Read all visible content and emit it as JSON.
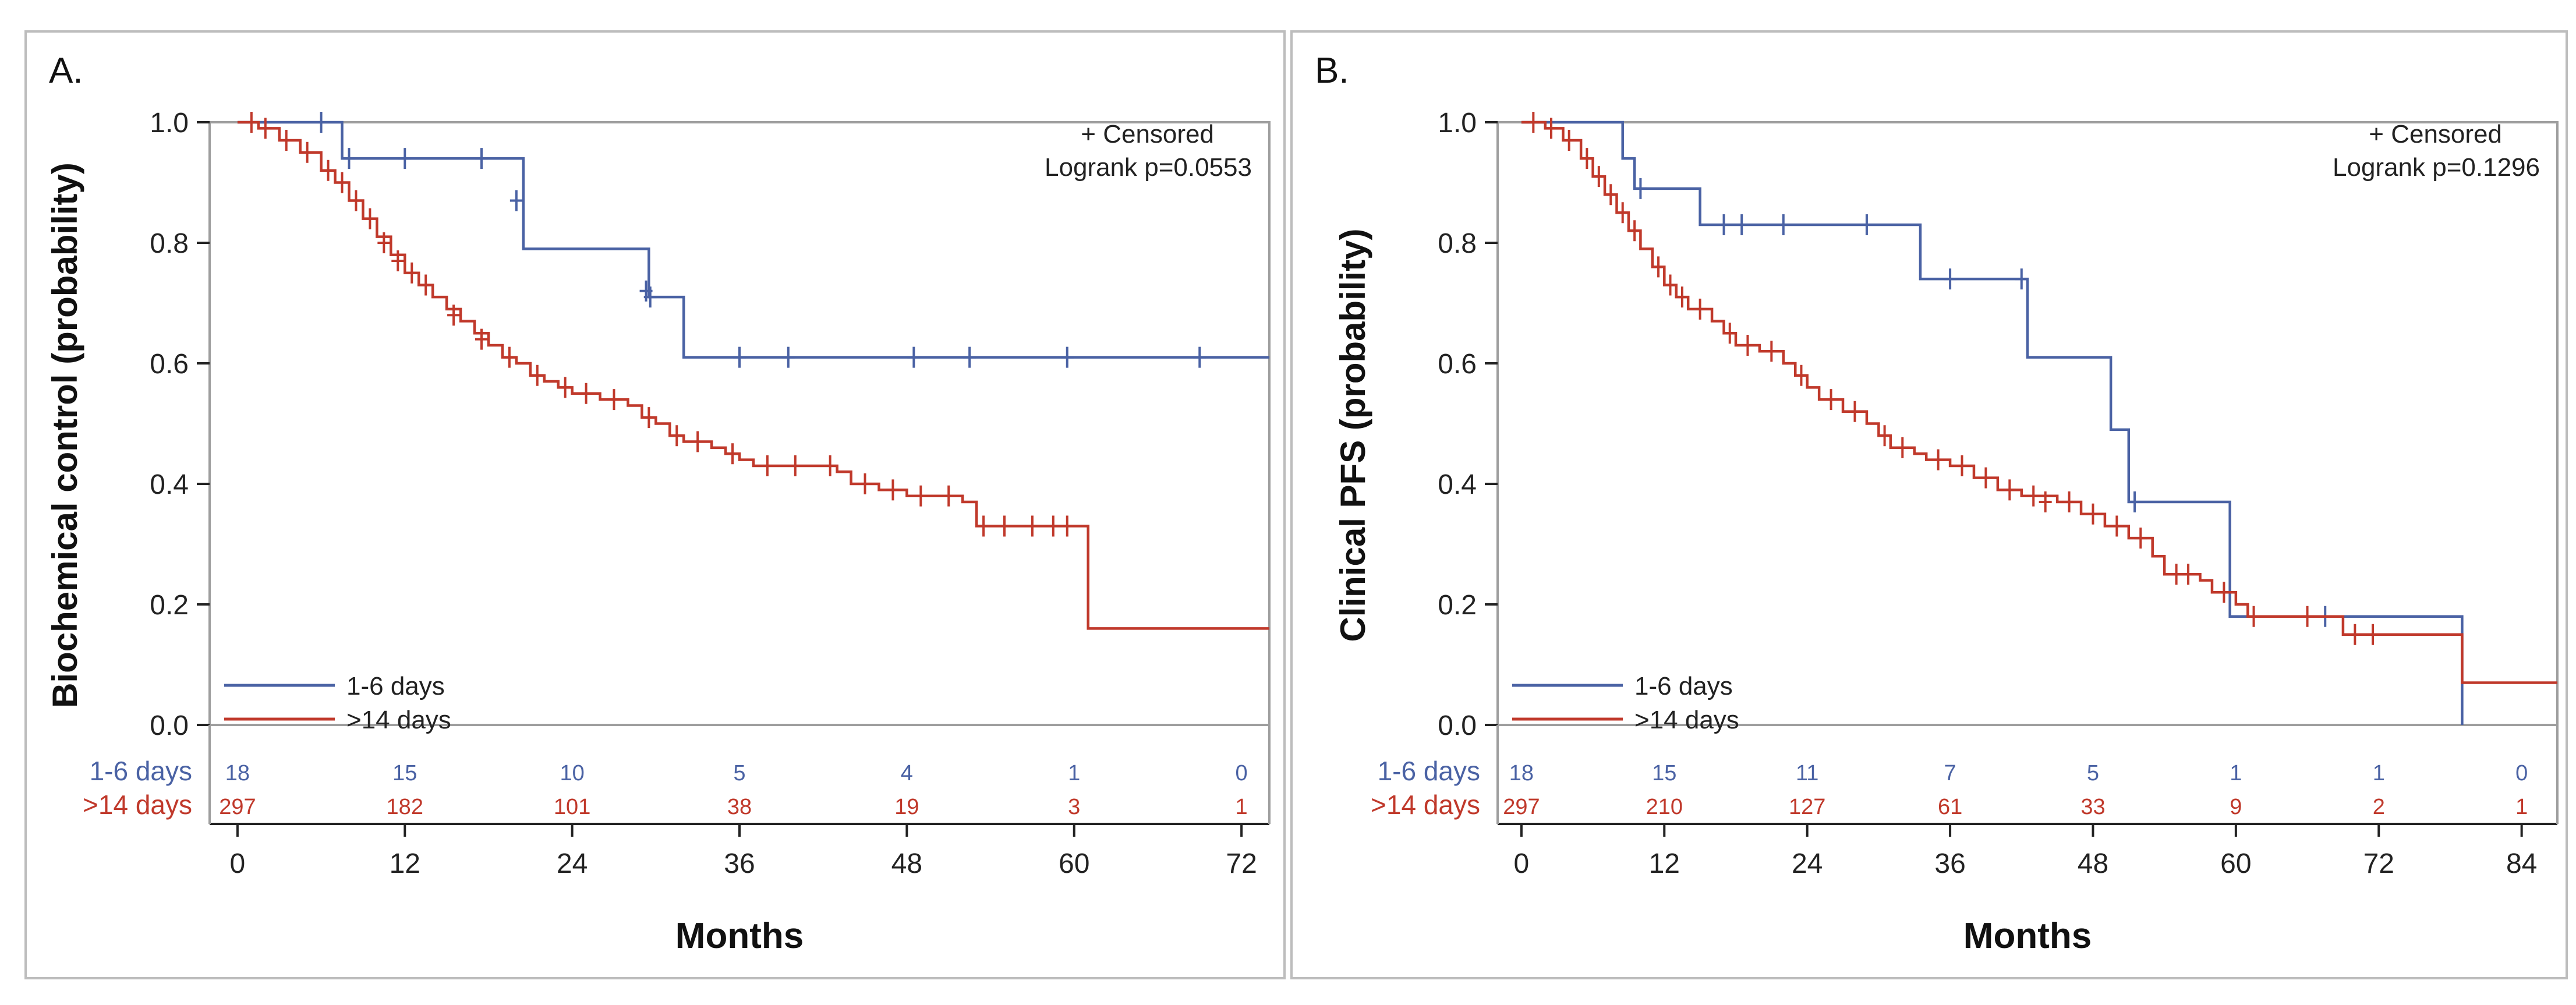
{
  "colors": {
    "group1": "#4a62a4",
    "group2": "#c0392b",
    "axis": "#222222",
    "frame": "#bdbdbd"
  },
  "chart_data": [
    {
      "type": "line",
      "subtype": "kaplan-meier",
      "panel_label": "A.",
      "ylabel": "Biochemical control (probability)",
      "xlabel": "Months",
      "xlim": [
        -2,
        74
      ],
      "ylim": [
        0,
        1.0
      ],
      "xticks": [
        "0",
        "12",
        "24",
        "36",
        "48",
        "60",
        "72"
      ],
      "xtick_values": [
        0,
        12,
        24,
        36,
        48,
        60,
        72
      ],
      "yticks": [
        "0.0",
        "0.2",
        "0.4",
        "0.6",
        "0.8",
        "1.0"
      ],
      "ytick_values": [
        0,
        0.2,
        0.4,
        0.6,
        0.8,
        1.0
      ],
      "annotation": {
        "censored": "+ Censored",
        "logrank": "Logrank p=0.0553"
      },
      "series": [
        {
          "name": "1-6 days",
          "color": "#4a62a4",
          "steps": [
            [
              0,
              1.0
            ],
            [
              7.5,
              0.94
            ],
            [
              20.5,
              0.79
            ],
            [
              29.5,
              0.71
            ],
            [
              32,
              0.61
            ],
            [
              74,
              0.61
            ]
          ],
          "censored": [
            [
              6,
              1.0
            ],
            [
              8,
              0.94
            ],
            [
              12,
              0.94
            ],
            [
              17.5,
              0.94
            ],
            [
              20,
              0.87
            ],
            [
              29.3,
              0.72
            ],
            [
              29.6,
              0.71
            ],
            [
              36,
              0.61
            ],
            [
              39.5,
              0.61
            ],
            [
              48.5,
              0.61
            ],
            [
              52.5,
              0.61
            ],
            [
              59.5,
              0.61
            ],
            [
              69,
              0.61
            ]
          ],
          "at_risk": [
            "18",
            "15",
            "10",
            "5",
            "4",
            "1",
            "0"
          ]
        },
        {
          "name": ">14 days",
          "color": "#c0392b",
          "steps": [
            [
              0,
              1.0
            ],
            [
              1.5,
              0.99
            ],
            [
              3,
              0.97
            ],
            [
              4.5,
              0.95
            ],
            [
              6,
              0.92
            ],
            [
              7,
              0.9
            ],
            [
              8,
              0.87
            ],
            [
              9,
              0.84
            ],
            [
              10,
              0.81
            ],
            [
              11,
              0.78
            ],
            [
              12,
              0.75
            ],
            [
              13,
              0.73
            ],
            [
              14,
              0.71
            ],
            [
              15,
              0.69
            ],
            [
              16,
              0.67
            ],
            [
              17,
              0.65
            ],
            [
              18,
              0.63
            ],
            [
              19,
              0.61
            ],
            [
              20,
              0.6
            ],
            [
              21,
              0.58
            ],
            [
              22,
              0.57
            ],
            [
              23,
              0.56
            ],
            [
              24,
              0.55
            ],
            [
              26,
              0.54
            ],
            [
              28,
              0.53
            ],
            [
              29,
              0.51
            ],
            [
              30,
              0.5
            ],
            [
              31,
              0.48
            ],
            [
              32,
              0.47
            ],
            [
              34,
              0.46
            ],
            [
              35,
              0.45
            ],
            [
              36,
              0.44
            ],
            [
              37,
              0.43
            ],
            [
              42,
              0.43
            ],
            [
              43,
              0.42
            ],
            [
              44,
              0.4
            ],
            [
              46,
              0.39
            ],
            [
              48,
              0.38
            ],
            [
              52,
              0.37
            ],
            [
              53,
              0.33
            ],
            [
              60,
              0.33
            ],
            [
              61,
              0.16
            ],
            [
              74,
              0.16
            ]
          ],
          "censored": [
            [
              1,
              1.0
            ],
            [
              2,
              0.99
            ],
            [
              3.5,
              0.97
            ],
            [
              5,
              0.95
            ],
            [
              6.5,
              0.92
            ],
            [
              7.5,
              0.9
            ],
            [
              8.5,
              0.87
            ],
            [
              9.5,
              0.84
            ],
            [
              10.5,
              0.8
            ],
            [
              11.5,
              0.77
            ],
            [
              12.5,
              0.75
            ],
            [
              13.5,
              0.73
            ],
            [
              15.5,
              0.68
            ],
            [
              17.5,
              0.64
            ],
            [
              19.5,
              0.61
            ],
            [
              21.5,
              0.58
            ],
            [
              23.5,
              0.56
            ],
            [
              25,
              0.55
            ],
            [
              27,
              0.54
            ],
            [
              29.5,
              0.51
            ],
            [
              31.5,
              0.48
            ],
            [
              33,
              0.47
            ],
            [
              35.5,
              0.45
            ],
            [
              38,
              0.43
            ],
            [
              40,
              0.43
            ],
            [
              42.5,
              0.43
            ],
            [
              45,
              0.4
            ],
            [
              47,
              0.39
            ],
            [
              49,
              0.38
            ],
            [
              51,
              0.38
            ],
            [
              53.5,
              0.33
            ],
            [
              55,
              0.33
            ],
            [
              57,
              0.33
            ],
            [
              58.5,
              0.33
            ],
            [
              59.5,
              0.33
            ]
          ],
          "at_risk": [
            "297",
            "182",
            "101",
            "38",
            "19",
            "3",
            "1"
          ]
        }
      ]
    },
    {
      "type": "line",
      "subtype": "kaplan-meier",
      "panel_label": "B.",
      "ylabel": "Clinical PFS (probability)",
      "xlabel": "Months",
      "xlim": [
        -2,
        87
      ],
      "ylim": [
        0,
        1.0
      ],
      "xticks": [
        "0",
        "12",
        "24",
        "36",
        "48",
        "60",
        "72",
        "84"
      ],
      "xtick_values": [
        0,
        12,
        24,
        36,
        48,
        60,
        72,
        84
      ],
      "yticks": [
        "0.0",
        "0.2",
        "0.4",
        "0.6",
        "0.8",
        "1.0"
      ],
      "ytick_values": [
        0,
        0.2,
        0.4,
        0.6,
        0.8,
        1.0
      ],
      "annotation": {
        "censored": "+ Censored",
        "logrank": "Logrank p=0.1296"
      },
      "series": [
        {
          "name": "1-6 days",
          "color": "#4a62a4",
          "steps": [
            [
              0,
              1.0
            ],
            [
              8.5,
              0.94
            ],
            [
              9.5,
              0.89
            ],
            [
              15,
              0.83
            ],
            [
              33.5,
              0.74
            ],
            [
              42.5,
              0.61
            ],
            [
              49.5,
              0.49
            ],
            [
              51,
              0.37
            ],
            [
              59.5,
              0.18
            ],
            [
              79,
              0.18
            ],
            [
              79,
              0.0
            ]
          ],
          "censored": [
            [
              10,
              0.89
            ],
            [
              17,
              0.83
            ],
            [
              18.5,
              0.83
            ],
            [
              22,
              0.83
            ],
            [
              29,
              0.83
            ],
            [
              36,
              0.74
            ],
            [
              42,
              0.74
            ],
            [
              51.5,
              0.37
            ],
            [
              67.5,
              0.18
            ]
          ],
          "at_risk": [
            "18",
            "15",
            "11",
            "7",
            "5",
            "1",
            "1",
            "0"
          ]
        },
        {
          "name": ">14 days",
          "color": "#c0392b",
          "steps": [
            [
              0,
              1.0
            ],
            [
              2,
              0.99
            ],
            [
              3.5,
              0.97
            ],
            [
              5,
              0.94
            ],
            [
              6,
              0.91
            ],
            [
              7,
              0.88
            ],
            [
              8,
              0.85
            ],
            [
              9,
              0.82
            ],
            [
              10,
              0.79
            ],
            [
              11,
              0.76
            ],
            [
              12,
              0.73
            ],
            [
              13,
              0.71
            ],
            [
              14,
              0.69
            ],
            [
              16,
              0.67
            ],
            [
              17,
              0.65
            ],
            [
              18,
              0.63
            ],
            [
              20,
              0.62
            ],
            [
              22,
              0.6
            ],
            [
              23,
              0.58
            ],
            [
              24,
              0.56
            ],
            [
              25,
              0.54
            ],
            [
              27,
              0.52
            ],
            [
              29,
              0.5
            ],
            [
              30,
              0.48
            ],
            [
              31,
              0.46
            ],
            [
              33,
              0.45
            ],
            [
              34,
              0.44
            ],
            [
              36,
              0.43
            ],
            [
              38,
              0.41
            ],
            [
              40,
              0.39
            ],
            [
              42,
              0.38
            ],
            [
              45,
              0.37
            ],
            [
              47,
              0.35
            ],
            [
              49,
              0.33
            ],
            [
              51,
              0.31
            ],
            [
              53,
              0.28
            ],
            [
              54,
              0.25
            ],
            [
              57,
              0.24
            ],
            [
              58,
              0.22
            ],
            [
              60,
              0.2
            ],
            [
              61,
              0.18
            ],
            [
              68,
              0.18
            ],
            [
              69,
              0.15
            ],
            [
              78,
              0.15
            ],
            [
              79,
              0.07
            ],
            [
              87,
              0.07
            ]
          ],
          "censored": [
            [
              1,
              1.0
            ],
            [
              2.5,
              0.99
            ],
            [
              4,
              0.97
            ],
            [
              5.5,
              0.94
            ],
            [
              6.5,
              0.91
            ],
            [
              7.5,
              0.88
            ],
            [
              8.5,
              0.85
            ],
            [
              9.5,
              0.82
            ],
            [
              11.5,
              0.76
            ],
            [
              12.5,
              0.73
            ],
            [
              13.5,
              0.71
            ],
            [
              15,
              0.69
            ],
            [
              17.5,
              0.65
            ],
            [
              19,
              0.63
            ],
            [
              21,
              0.62
            ],
            [
              23.5,
              0.58
            ],
            [
              26,
              0.54
            ],
            [
              28,
              0.52
            ],
            [
              30.5,
              0.48
            ],
            [
              32,
              0.46
            ],
            [
              35,
              0.44
            ],
            [
              37,
              0.43
            ],
            [
              39,
              0.41
            ],
            [
              41,
              0.39
            ],
            [
              43,
              0.38
            ],
            [
              44,
              0.37
            ],
            [
              46,
              0.37
            ],
            [
              48,
              0.35
            ],
            [
              50,
              0.33
            ],
            [
              52,
              0.31
            ],
            [
              55,
              0.25
            ],
            [
              56,
              0.25
            ],
            [
              59,
              0.22
            ],
            [
              61.5,
              0.18
            ],
            [
              66,
              0.18
            ],
            [
              70,
              0.15
            ],
            [
              71.5,
              0.15
            ]
          ],
          "at_risk": [
            "297",
            "210",
            "127",
            "61",
            "33",
            "9",
            "2",
            "1"
          ]
        }
      ]
    }
  ]
}
